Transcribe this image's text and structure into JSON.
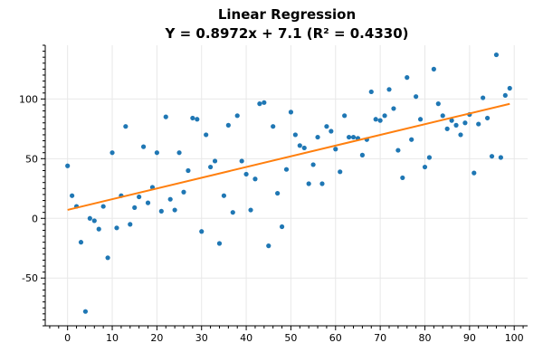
{
  "chart_data": {
    "type": "scatter",
    "title": "Linear Regression",
    "subtitle": "Y = 0.8972x + 7.1 (R² = 0.4330)",
    "xlim": [
      -5,
      103
    ],
    "ylim": [
      -90,
      145
    ],
    "grid": true,
    "xticks": [
      0,
      10,
      20,
      30,
      40,
      50,
      60,
      70,
      80,
      90,
      100
    ],
    "yticks": [
      -50,
      0,
      50,
      100
    ],
    "regression": {
      "slope": 0.8972,
      "intercept": 7.1,
      "x_range": [
        0,
        99
      ]
    },
    "colors": {
      "points": "#1f77b4",
      "line": "#ff7f0e",
      "grid": "#e8e8e8",
      "axis": "#000000"
    },
    "points": [
      [
        0,
        44
      ],
      [
        1,
        19
      ],
      [
        2,
        10
      ],
      [
        3,
        -20
      ],
      [
        4,
        -78
      ],
      [
        5,
        0
      ],
      [
        6,
        -2
      ],
      [
        7,
        -9
      ],
      [
        8,
        10
      ],
      [
        9,
        -33
      ],
      [
        10,
        55
      ],
      [
        11,
        -8
      ],
      [
        12,
        19
      ],
      [
        13,
        77
      ],
      [
        14,
        -5
      ],
      [
        15,
        9
      ],
      [
        16,
        18
      ],
      [
        17,
        60
      ],
      [
        18,
        13
      ],
      [
        19,
        26
      ],
      [
        20,
        55
      ],
      [
        21,
        6
      ],
      [
        22,
        85
      ],
      [
        23,
        16
      ],
      [
        24,
        7
      ],
      [
        25,
        55
      ],
      [
        26,
        22
      ],
      [
        27,
        40
      ],
      [
        28,
        84
      ],
      [
        29,
        83
      ],
      [
        30,
        -11
      ],
      [
        31,
        70
      ],
      [
        32,
        43
      ],
      [
        33,
        48
      ],
      [
        34,
        -21
      ],
      [
        35,
        19
      ],
      [
        36,
        78
      ],
      [
        37,
        5
      ],
      [
        38,
        86
      ],
      [
        39,
        48
      ],
      [
        40,
        37
      ],
      [
        41,
        7
      ],
      [
        42,
        33
      ],
      [
        43,
        96
      ],
      [
        44,
        97
      ],
      [
        45,
        -23
      ],
      [
        46,
        77
      ],
      [
        47,
        21
      ],
      [
        48,
        -7
      ],
      [
        49,
        41
      ],
      [
        50,
        89
      ],
      [
        51,
        70
      ],
      [
        52,
        61
      ],
      [
        53,
        59
      ],
      [
        54,
        29
      ],
      [
        55,
        45
      ],
      [
        56,
        68
      ],
      [
        57,
        29
      ],
      [
        58,
        77
      ],
      [
        59,
        73
      ],
      [
        60,
        58
      ],
      [
        61,
        39
      ],
      [
        62,
        86
      ],
      [
        63,
        68
      ],
      [
        64,
        68
      ],
      [
        65,
        67
      ],
      [
        66,
        53
      ],
      [
        67,
        66
      ],
      [
        68,
        106
      ],
      [
        69,
        83
      ],
      [
        70,
        82
      ],
      [
        71,
        86
      ],
      [
        72,
        108
      ],
      [
        73,
        92
      ],
      [
        74,
        57
      ],
      [
        75,
        34
      ],
      [
        76,
        118
      ],
      [
        77,
        66
      ],
      [
        78,
        102
      ],
      [
        79,
        83
      ],
      [
        80,
        43
      ],
      [
        81,
        51
      ],
      [
        82,
        125
      ],
      [
        83,
        96
      ],
      [
        84,
        86
      ],
      [
        85,
        75
      ],
      [
        86,
        82
      ],
      [
        87,
        78
      ],
      [
        88,
        70
      ],
      [
        89,
        80
      ],
      [
        90,
        87
      ],
      [
        91,
        38
      ],
      [
        92,
        79
      ],
      [
        93,
        101
      ],
      [
        94,
        84
      ],
      [
        95,
        52
      ],
      [
        96,
        137
      ],
      [
        97,
        51
      ],
      [
        98,
        103
      ],
      [
        99,
        109
      ]
    ]
  }
}
